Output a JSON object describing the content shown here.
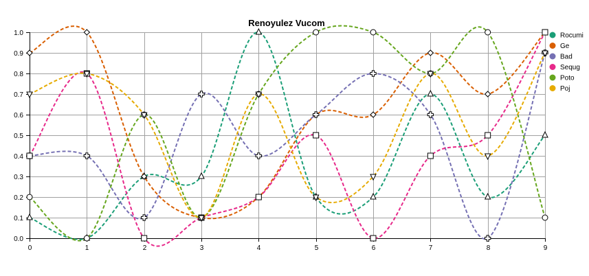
{
  "chart_data": {
    "type": "line",
    "title": "Renoyulez Vucom",
    "xlabel": "",
    "ylabel": "",
    "x": [
      0,
      1,
      2,
      3,
      4,
      5,
      6,
      7,
      8,
      9
    ],
    "xlim": [
      0,
      9
    ],
    "ylim": [
      0,
      1.0
    ],
    "x_ticks": [
      "0",
      "1",
      "2",
      "3",
      "4",
      "5",
      "6",
      "7",
      "8",
      "9"
    ],
    "y_ticks": [
      "0.0",
      "0.1",
      "0.2",
      "0.3",
      "0.4",
      "0.5",
      "0.6",
      "0.7",
      "0.8",
      "0.9",
      "1.0"
    ],
    "grid": true,
    "legend_position": "right",
    "series": [
      {
        "name": "Rocumi",
        "color": "#1b9e77",
        "marker": "triangle",
        "values": [
          0.1,
          0.0,
          0.3,
          0.3,
          1.0,
          0.2,
          0.2,
          0.7,
          0.2,
          0.5
        ]
      },
      {
        "name": "Ge",
        "color": "#d95f02",
        "marker": "diamond",
        "values": [
          0.9,
          1.0,
          0.3,
          0.1,
          0.2,
          0.6,
          0.6,
          0.9,
          0.7,
          1.0
        ]
      },
      {
        "name": "Bad",
        "color": "#7570b3",
        "marker": "plus",
        "values": [
          0.4,
          0.4,
          0.1,
          0.7,
          0.4,
          0.6,
          0.8,
          0.6,
          0.0,
          0.9
        ]
      },
      {
        "name": "Sequg",
        "color": "#e7298a",
        "marker": "square",
        "values": [
          0.4,
          0.8,
          0.0,
          0.1,
          0.2,
          0.5,
          0.0,
          0.4,
          0.5,
          1.0
        ]
      },
      {
        "name": "Poto",
        "color": "#66a61e",
        "marker": "circle",
        "values": [
          0.2,
          0.0,
          0.6,
          0.1,
          0.7,
          1.0,
          1.0,
          0.8,
          1.0,
          0.1
        ]
      },
      {
        "name": "Poj",
        "color": "#e6ab02",
        "marker": "triangle-down",
        "values": [
          0.7,
          0.8,
          0.6,
          0.1,
          0.7,
          0.2,
          0.3,
          0.8,
          0.4,
          0.9
        ]
      }
    ]
  }
}
